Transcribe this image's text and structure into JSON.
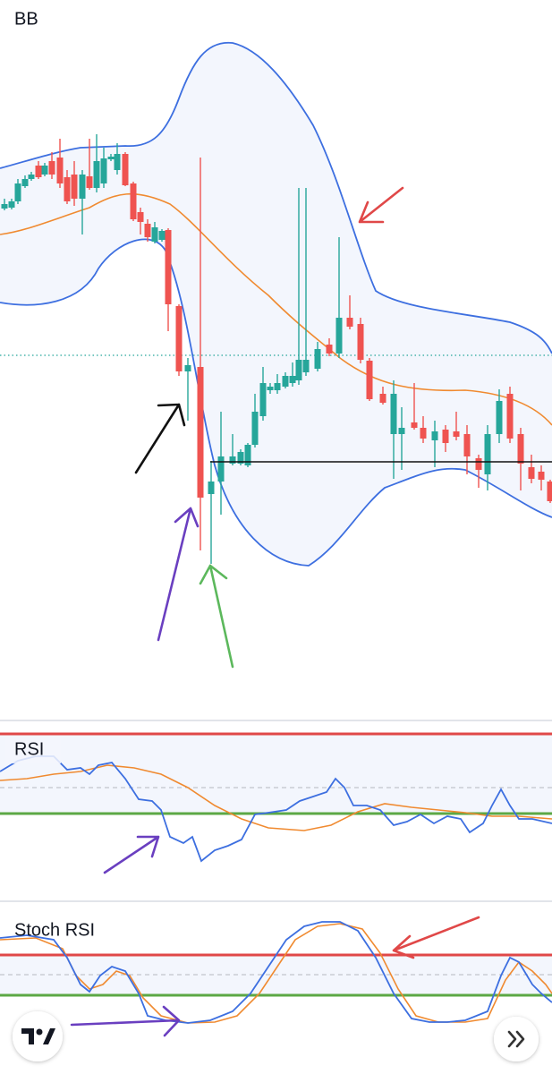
{
  "panels": [
    {
      "label": "BB"
    },
    {
      "label": "RSI"
    },
    {
      "label": "Stoch RSI"
    }
  ]
}
